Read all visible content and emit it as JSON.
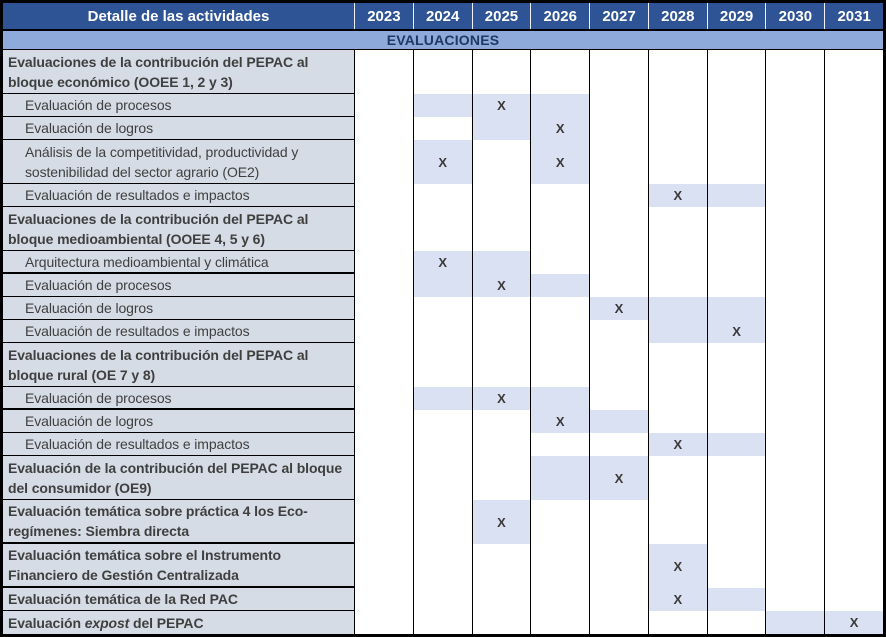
{
  "header": {
    "activities_label": "Detalle de las actividades"
  },
  "years": [
    "2023",
    "2024",
    "2025",
    "2026",
    "2027",
    "2028",
    "2029",
    "2030",
    "2031"
  ],
  "section_band": "EVALUACIONES",
  "x_mark": "X",
  "colors": {
    "header_bg": "#2F5496",
    "header_text": "#FFFFFF",
    "band_bg": "#8EAADB",
    "band_text": "#1F3864",
    "label_bg": "#D6DCE5",
    "label_text": "#3F3F3F",
    "shade": "#DAE1F3",
    "x_color": "#3B3838",
    "grid": "#000000"
  },
  "rows": [
    {
      "label": "Evaluaciones de la contribución del PEPAC al bloque económico (OOEE 1, 2 y 3)",
      "bold": true,
      "indent": false,
      "lines": 2,
      "cells": {}
    },
    {
      "label": "Evaluación de procesos",
      "bold": false,
      "indent": true,
      "lines": 1,
      "cells": {
        "2024": "shaded",
        "2025": "x",
        "2026": "shaded"
      }
    },
    {
      "label": "Evaluación de logros",
      "bold": false,
      "indent": true,
      "lines": 1,
      "cells": {
        "2025": "shaded",
        "2026": "x"
      }
    },
    {
      "label": "Análisis de la competitividad, productividad y sostenibilidad del sector agrario (OE2)",
      "bold": false,
      "indent": true,
      "lines": 2,
      "cells": {
        "2024": "x",
        "2026": "x"
      }
    },
    {
      "label": "Evaluación de resultados e impactos",
      "bold": false,
      "indent": true,
      "lines": 1,
      "cells": {
        "2028": "x",
        "2029": "shaded"
      }
    },
    {
      "label": "Evaluaciones de la contribución del PEPAC al bloque medioambiental (OOEE 4, 5 y 6)",
      "bold": true,
      "indent": false,
      "lines": 2,
      "cells": {}
    },
    {
      "label": "Arquitectura medioambiental y climática",
      "bold": false,
      "indent": true,
      "lines": 1,
      "thick_bottom": true,
      "cells": {
        "2024": "x",
        "2025": "shaded"
      }
    },
    {
      "label": "Evaluación de procesos",
      "bold": false,
      "indent": true,
      "lines": 1,
      "cells": {
        "2024": "shaded",
        "2025": "x",
        "2026": "shaded"
      }
    },
    {
      "label": "Evaluación de logros",
      "bold": false,
      "indent": true,
      "lines": 1,
      "cells": {
        "2027": "x",
        "2028": "shaded",
        "2029": "shaded"
      }
    },
    {
      "label": "Evaluación de resultados e impactos",
      "bold": false,
      "indent": true,
      "lines": 1,
      "cells": {
        "2028": "shaded",
        "2029": "x"
      }
    },
    {
      "label": "Evaluaciones de la contribución del PEPAC al bloque rural (OE 7 y 8)",
      "bold": true,
      "indent": false,
      "lines": 2,
      "cells": {}
    },
    {
      "label": "Evaluación de procesos",
      "bold": false,
      "indent": true,
      "lines": 1,
      "thick_bottom": true,
      "cells": {
        "2024": "shaded",
        "2025": "x",
        "2026": "shaded"
      }
    },
    {
      "label": "Evaluación de logros",
      "bold": false,
      "indent": true,
      "lines": 1,
      "cells": {
        "2026": "x",
        "2027": "shaded"
      }
    },
    {
      "label": "Evaluación de resultados e impactos",
      "bold": false,
      "indent": true,
      "lines": 1,
      "cells": {
        "2028": "x",
        "2029": "shaded"
      }
    },
    {
      "label": "Evaluación de la contribución del PEPAC al bloque del consumidor (OE9)",
      "bold": true,
      "indent": false,
      "lines": 2,
      "cells": {
        "2026": "shaded",
        "2027": "x"
      }
    },
    {
      "label": "Evaluación temática sobre práctica 4 los Eco-regímenes: Siembra directa",
      "bold": true,
      "indent": false,
      "lines": 2,
      "thick_bottom": true,
      "cells": {
        "2025": "x"
      }
    },
    {
      "label": "Evaluación temática sobre el Instrumento Financiero de Gestión Centralizada",
      "bold": true,
      "indent": false,
      "lines": 2,
      "thick_bottom": true,
      "cells": {
        "2028": "x"
      }
    },
    {
      "label": "Evaluación temática de la Red PAC",
      "bold": true,
      "indent": false,
      "lines": 1,
      "cells": {
        "2028": "x",
        "2029": "shaded"
      }
    },
    {
      "label": "Evaluación expost del PEPAC",
      "bold": true,
      "indent": false,
      "lines": 1,
      "italic_word": "expost",
      "cells": {
        "2030": "shaded",
        "2031": "x"
      }
    }
  ]
}
